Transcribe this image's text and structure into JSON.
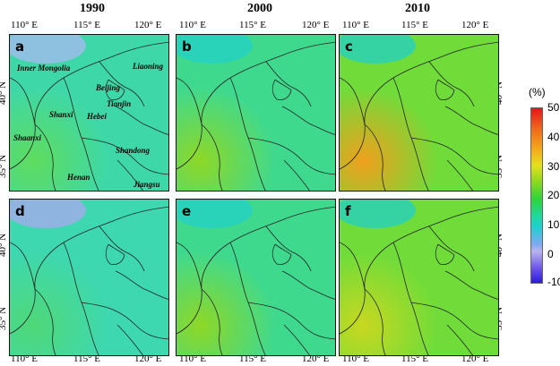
{
  "columns": [
    "1990",
    "2000",
    "2010"
  ],
  "x_ticks": [
    "110° E",
    "115° E",
    "120° E"
  ],
  "y_ticks": [
    "40° N",
    "35° N"
  ],
  "panel_labels": [
    "a",
    "b",
    "c",
    "d",
    "e",
    "f"
  ],
  "region_labels": [
    "Inner Mongolia",
    "Liaoning",
    "Beijing",
    "Tianjin",
    "Shanxi",
    "Hebei",
    "Shaanxi",
    "Shandong",
    "Henan",
    "Jiangsu"
  ],
  "colorbar": {
    "unit": "(%)",
    "ticks": [
      "50",
      "40",
      "30",
      "20",
      "10",
      "0",
      "-10"
    ],
    "range": [
      -10,
      50
    ],
    "colors": [
      "#2b1ae0",
      "#b8b4f0",
      "#1ed0cf",
      "#2ed43a",
      "#e2e21c",
      "#f5b21a",
      "#e8141a"
    ]
  },
  "panel_colors": {
    "a": {
      "base": "#3ed8a8",
      "accent": "#a9b8f2",
      "warm": "#5fdc5e"
    },
    "b": {
      "base": "#3fd98e",
      "accent": "#22d0c8",
      "warm": "#8ed826"
    },
    "c": {
      "base": "#6fdc3a",
      "accent": "#22d0c8",
      "warm": "#f0a01c"
    },
    "d": {
      "base": "#3ed8b0",
      "accent": "#a9a8ef",
      "warm": "#4fd878"
    },
    "e": {
      "base": "#3fd98e",
      "accent": "#22d0c8",
      "warm": "#8ed826"
    },
    "f": {
      "base": "#6fdc3a",
      "accent": "#22d0c8",
      "warm": "#c8d820"
    }
  }
}
